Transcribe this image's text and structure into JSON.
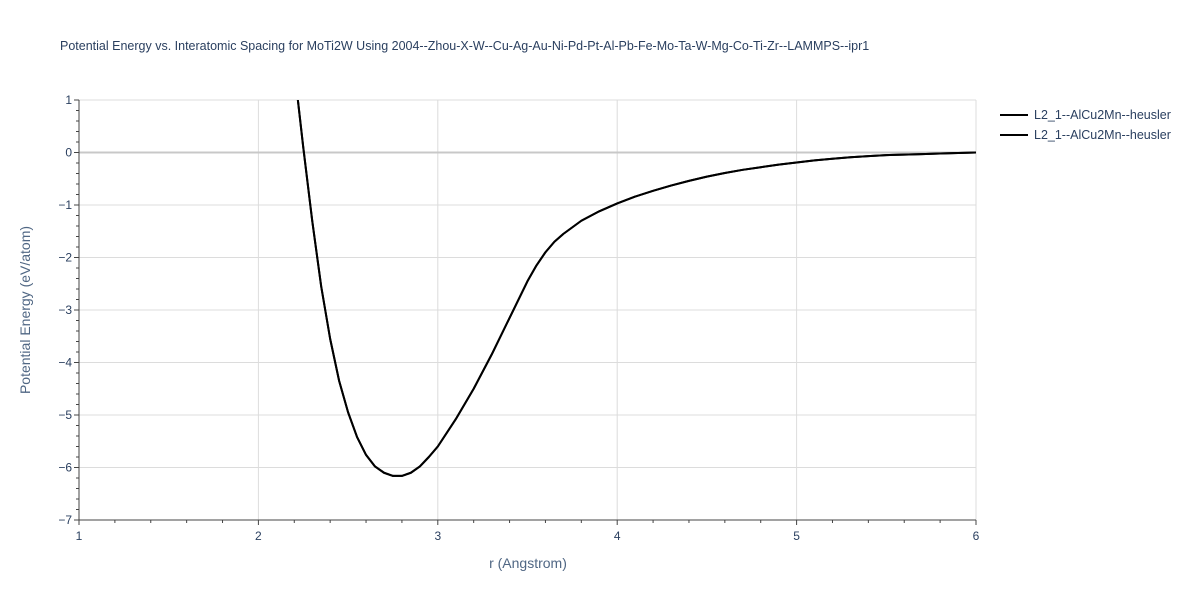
{
  "chart_data": {
    "type": "line",
    "title": "Potential Energy vs. Interatomic Spacing for MoTi2W Using 2004--Zhou-X-W--Cu-Ag-Au-Ni-Pd-Pt-Al-Pb-Fe-Mo-Ta-W-Mg-Co-Ti-Zr--LAMMPS--ipr1",
    "xlabel": "r (Angstrom)",
    "ylabel": "Potential Energy (eV/atom)",
    "xlim": [
      1,
      6
    ],
    "ylim": [
      -7,
      1
    ],
    "x_ticks": [
      1,
      2,
      3,
      4,
      5,
      6
    ],
    "y_ticks": [
      1,
      0,
      -1,
      -2,
      -3,
      -4,
      -5,
      -6,
      -7
    ],
    "x_tick_labels": [
      "1",
      "2",
      "3",
      "4",
      "5",
      "6"
    ],
    "y_tick_labels": [
      "1",
      "0",
      "−1",
      "−2",
      "−3",
      "−4",
      "−5",
      "−6",
      "−7"
    ],
    "grid": true,
    "legend_position": "top-right",
    "series": [
      {
        "name": "L2_1--AlCu2Mn--heusler",
        "color": "#000000",
        "x": [
          2.22,
          2.25,
          2.3,
          2.35,
          2.4,
          2.45,
          2.5,
          2.55,
          2.6,
          2.65,
          2.7,
          2.75,
          2.8,
          2.85,
          2.9,
          2.95,
          3.0,
          3.1,
          3.2,
          3.3,
          3.4,
          3.5,
          3.55,
          3.6,
          3.65,
          3.7,
          3.8,
          3.9,
          4.0,
          4.1,
          4.2,
          4.3,
          4.4,
          4.5,
          4.6,
          4.7,
          4.8,
          4.9,
          5.0,
          5.1,
          5.2,
          5.3,
          5.4,
          5.5,
          5.6,
          5.7,
          5.8,
          5.9,
          6.0
        ],
        "y": [
          1.0,
          0.1,
          -1.3,
          -2.55,
          -3.55,
          -4.35,
          -4.95,
          -5.42,
          -5.76,
          -5.98,
          -6.1,
          -6.16,
          -6.16,
          -6.1,
          -5.98,
          -5.8,
          -5.6,
          -5.08,
          -4.5,
          -3.85,
          -3.15,
          -2.45,
          -2.15,
          -1.9,
          -1.7,
          -1.55,
          -1.3,
          -1.12,
          -0.97,
          -0.84,
          -0.73,
          -0.63,
          -0.54,
          -0.46,
          -0.39,
          -0.33,
          -0.28,
          -0.23,
          -0.19,
          -0.15,
          -0.12,
          -0.09,
          -0.07,
          -0.05,
          -0.04,
          -0.03,
          -0.02,
          -0.01,
          0.0
        ]
      },
      {
        "name": "L2_1--AlCu2Mn--heusler",
        "color": "#000000",
        "x": [
          2.22,
          2.25,
          2.3,
          2.35,
          2.4,
          2.45,
          2.5,
          2.55,
          2.6,
          2.65,
          2.7,
          2.75,
          2.8,
          2.85,
          2.9,
          2.95,
          3.0,
          3.1,
          3.2,
          3.3,
          3.4,
          3.5,
          3.55,
          3.6,
          3.65,
          3.7,
          3.8,
          3.9,
          4.0,
          4.1,
          4.2,
          4.3,
          4.4,
          4.5,
          4.6,
          4.7,
          4.8,
          4.9,
          5.0,
          5.1,
          5.2,
          5.3,
          5.4,
          5.5,
          5.6,
          5.7,
          5.8,
          5.9,
          6.0
        ],
        "y": [
          1.0,
          0.1,
          -1.3,
          -2.55,
          -3.55,
          -4.35,
          -4.95,
          -5.42,
          -5.76,
          -5.98,
          -6.1,
          -6.16,
          -6.16,
          -6.1,
          -5.98,
          -5.8,
          -5.6,
          -5.08,
          -4.5,
          -3.85,
          -3.15,
          -2.45,
          -2.15,
          -1.9,
          -1.7,
          -1.55,
          -1.3,
          -1.12,
          -0.97,
          -0.84,
          -0.73,
          -0.63,
          -0.54,
          -0.46,
          -0.39,
          -0.33,
          -0.28,
          -0.23,
          -0.19,
          -0.15,
          -0.12,
          -0.09,
          -0.07,
          -0.05,
          -0.04,
          -0.03,
          -0.02,
          -0.01,
          0.0
        ]
      }
    ]
  }
}
